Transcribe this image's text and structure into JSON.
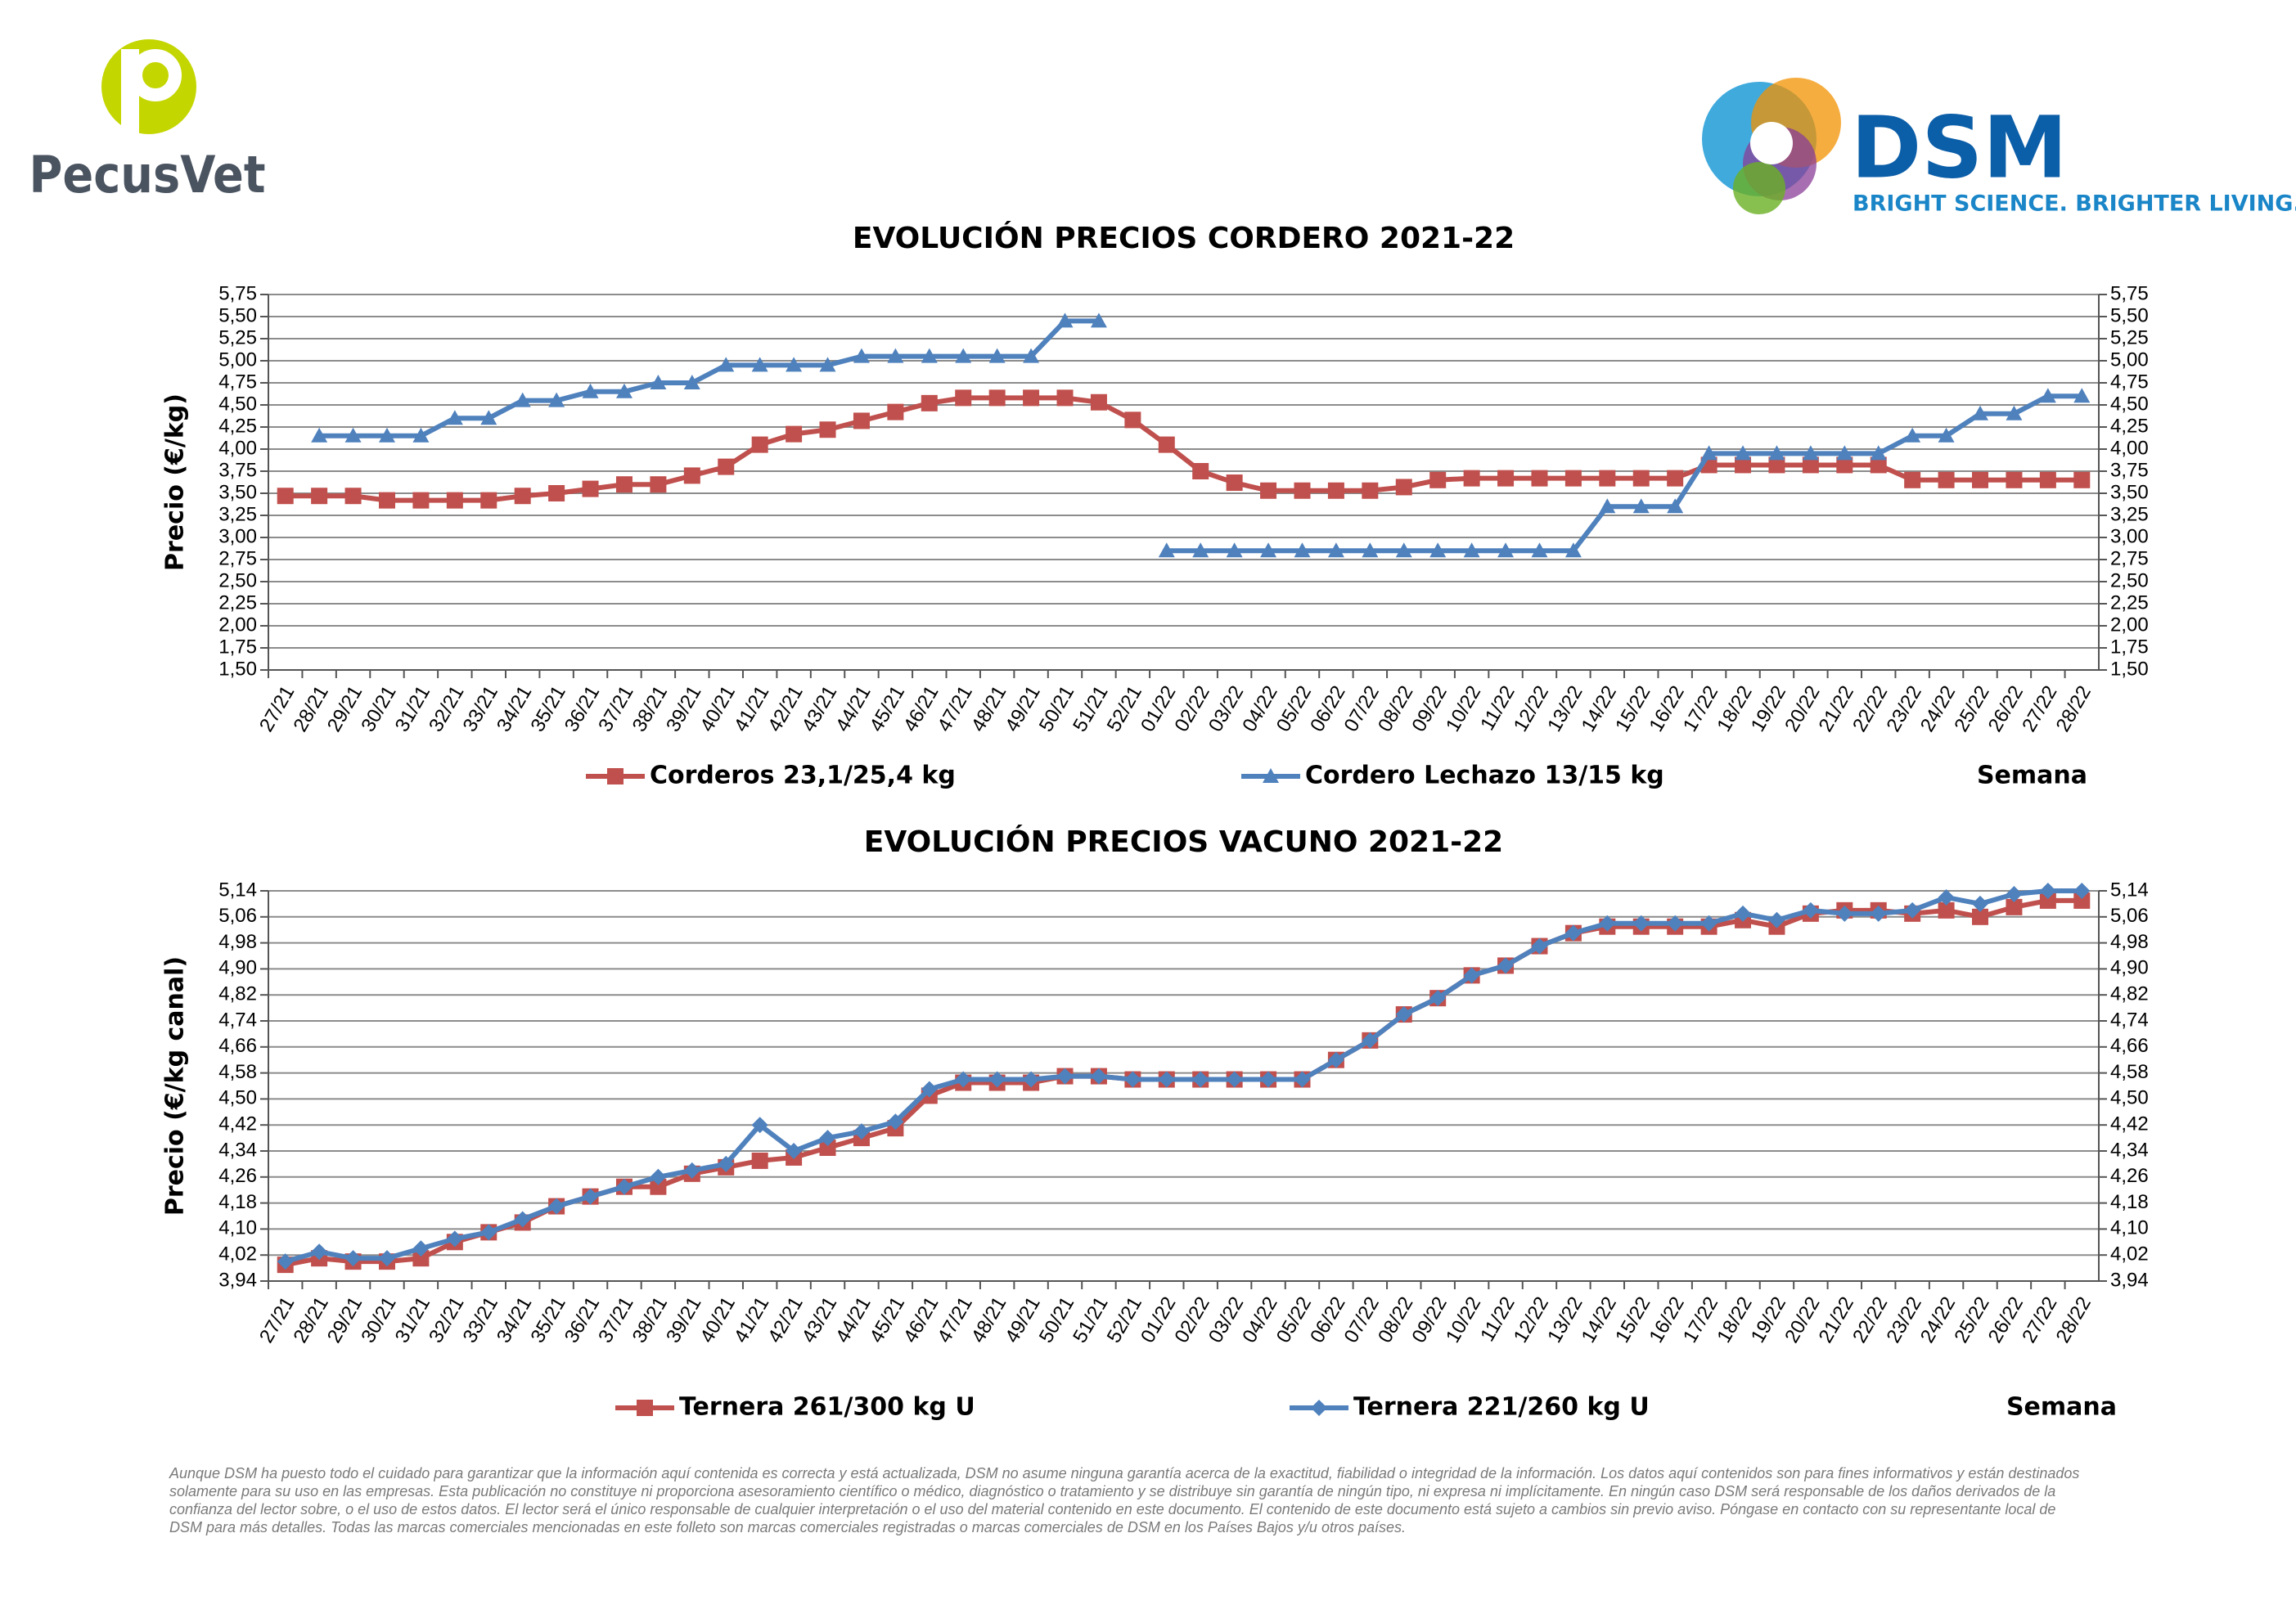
{
  "logos": {
    "left": "PecusVet",
    "right": "DSM",
    "tagline": "BRIGHT SCIENCE. BRIGHTER LIVING."
  },
  "chart_data": [
    {
      "type": "line",
      "title": "EVOLUCIÓN PRECIOS CORDERO 2021-22",
      "y_label": "Precio (€/kg)",
      "x_label": "Semana",
      "grid": true,
      "categories": [
        "27/21",
        "28/21",
        "29/21",
        "30/21",
        "31/21",
        "32/21",
        "33/21",
        "34/21",
        "35/21",
        "36/21",
        "37/21",
        "38/21",
        "39/21",
        "40/21",
        "41/21",
        "42/21",
        "43/21",
        "44/21",
        "45/21",
        "46/21",
        "47/21",
        "48/21",
        "49/21",
        "50/21",
        "51/21",
        "52/21",
        "01/22",
        "02/22",
        "03/22",
        "04/22",
        "05/22",
        "06/22",
        "07/22",
        "08/22",
        "09/22",
        "10/22",
        "11/22",
        "12/22",
        "13/22",
        "14/22",
        "15/22",
        "16/22",
        "17/22",
        "18/22",
        "19/22",
        "20/22",
        "21/22",
        "22/22",
        "23/22",
        "24/22",
        "25/22",
        "26/22",
        "27/22",
        "28/22"
      ],
      "ylim": [
        1.5,
        5.75
      ],
      "yticks": [
        {
          "value": 1.5,
          "label": "1,50"
        },
        {
          "value": 1.75,
          "label": "1,75"
        },
        {
          "value": 2,
          "label": "2,00"
        },
        {
          "value": 2.25,
          "label": "2,25"
        },
        {
          "value": 2.5,
          "label": "2,50"
        },
        {
          "value": 2.75,
          "label": "2,75"
        },
        {
          "value": 3,
          "label": "3,00"
        },
        {
          "value": 3.25,
          "label": "3,25"
        },
        {
          "value": 3.5,
          "label": "3,50"
        },
        {
          "value": 3.75,
          "label": "3,75"
        },
        {
          "value": 4,
          "label": "4,00"
        },
        {
          "value": 4.25,
          "label": "4,25"
        },
        {
          "value": 4.5,
          "label": "4,50"
        },
        {
          "value": 4.75,
          "label": "4,75"
        },
        {
          "value": 5,
          "label": "5,00"
        },
        {
          "value": 5.25,
          "label": "5,25"
        },
        {
          "value": 5.5,
          "label": "5,50"
        },
        {
          "value": 5.75,
          "label": "5,75"
        }
      ],
      "series": [
        {
          "name": "Corderos 23,1/25,4 kg",
          "color": "#c0504d",
          "marker": "square",
          "values": [
            3.47,
            3.47,
            3.47,
            3.42,
            3.42,
            3.42,
            3.42,
            3.47,
            3.5,
            3.55,
            3.6,
            3.6,
            3.7,
            3.8,
            4.05,
            4.17,
            4.22,
            4.32,
            4.42,
            4.52,
            4.58,
            4.58,
            4.58,
            4.58,
            4.53,
            4.33,
            4.05,
            3.75,
            3.62,
            3.53,
            3.53,
            3.53,
            3.53,
            3.57,
            3.65,
            3.67,
            3.67,
            3.67,
            3.67,
            3.67,
            3.67,
            3.67,
            3.82,
            3.82,
            3.82,
            3.82,
            3.82,
            3.82,
            3.65,
            3.65,
            3.65,
            3.65,
            3.65,
            3.65
          ]
        },
        {
          "name": "Cordero Lechazo 13/15 kg",
          "color": "#4f81bd",
          "marker": "triangle",
          "values": [
            null,
            4.15,
            4.15,
            4.15,
            4.15,
            4.35,
            4.35,
            4.55,
            4.55,
            4.65,
            4.65,
            4.75,
            4.75,
            4.95,
            4.95,
            4.95,
            4.95,
            5.05,
            5.05,
            5.05,
            5.05,
            5.05,
            5.05,
            5.45,
            5.45,
            null,
            2.85,
            2.85,
            2.85,
            2.85,
            2.85,
            2.85,
            2.85,
            2.85,
            2.85,
            2.85,
            2.85,
            2.85,
            2.85,
            3.35,
            3.35,
            3.35,
            3.95,
            3.95,
            3.95,
            3.95,
            3.95,
            3.95,
            4.15,
            4.15,
            4.4,
            4.4,
            4.6,
            4.6
          ]
        }
      ]
    },
    {
      "type": "line",
      "title": "EVOLUCIÓN PRECIOS VACUNO 2021-22",
      "y_label": "Precio (€/kg canal)",
      "x_label": "Semana",
      "grid": true,
      "categories": [
        "27/21",
        "28/21",
        "29/21",
        "30/21",
        "31/21",
        "32/21",
        "33/21",
        "34/21",
        "35/21",
        "36/21",
        "37/21",
        "38/21",
        "39/21",
        "40/21",
        "41/21",
        "42/21",
        "43/21",
        "44/21",
        "45/21",
        "46/21",
        "47/21",
        "48/21",
        "49/21",
        "50/21",
        "51/21",
        "52/21",
        "01/22",
        "02/22",
        "03/22",
        "04/22",
        "05/22",
        "06/22",
        "07/22",
        "08/22",
        "09/22",
        "10/22",
        "11/22",
        "12/22",
        "13/22",
        "14/22",
        "15/22",
        "16/22",
        "17/22",
        "18/22",
        "19/22",
        "20/22",
        "21/22",
        "22/22",
        "23/22",
        "24/22",
        "25/22",
        "26/22",
        "27/22",
        "28/22"
      ],
      "ylim": [
        3.94,
        5.14
      ],
      "yticks": [
        {
          "value": 3.94,
          "label": "3,94"
        },
        {
          "value": 4.02,
          "label": "4,02"
        },
        {
          "value": 4.1,
          "label": "4,10"
        },
        {
          "value": 4.18,
          "label": "4,18"
        },
        {
          "value": 4.26,
          "label": "4,26"
        },
        {
          "value": 4.34,
          "label": "4,34"
        },
        {
          "value": 4.42,
          "label": "4,42"
        },
        {
          "value": 4.5,
          "label": "4,50"
        },
        {
          "value": 4.58,
          "label": "4,58"
        },
        {
          "value": 4.66,
          "label": "4,66"
        },
        {
          "value": 4.74,
          "label": "4,74"
        },
        {
          "value": 4.82,
          "label": "4,82"
        },
        {
          "value": 4.9,
          "label": "4,90"
        },
        {
          "value": 4.98,
          "label": "4,98"
        },
        {
          "value": 5.06,
          "label": "5,06"
        },
        {
          "value": 5.14,
          "label": "5,14"
        }
      ],
      "series": [
        {
          "name": "Ternera 261/300 kg U",
          "color": "#c0504d",
          "marker": "square",
          "values": [
            3.99,
            4.01,
            4.0,
            4.0,
            4.01,
            4.06,
            4.09,
            4.12,
            4.17,
            4.2,
            4.23,
            4.23,
            4.27,
            4.29,
            4.31,
            4.32,
            4.35,
            4.38,
            4.41,
            4.51,
            4.55,
            4.55,
            4.55,
            4.57,
            4.57,
            4.56,
            4.56,
            4.56,
            4.56,
            4.56,
            4.56,
            4.62,
            4.68,
            4.76,
            4.81,
            4.88,
            4.91,
            4.97,
            5.01,
            5.03,
            5.03,
            5.03,
            5.03,
            5.05,
            5.03,
            5.07,
            5.08,
            5.08,
            5.07,
            5.08,
            5.06,
            5.09,
            5.11,
            5.11
          ]
        },
        {
          "name": "Ternera 221/260 kg U",
          "color": "#4f81bd",
          "marker": "diamond",
          "values": [
            4.0,
            4.03,
            4.01,
            4.01,
            4.04,
            4.07,
            4.09,
            4.13,
            4.17,
            4.2,
            4.23,
            4.26,
            4.28,
            4.3,
            4.42,
            4.34,
            4.38,
            4.4,
            4.43,
            4.53,
            4.56,
            4.56,
            4.56,
            4.57,
            4.57,
            4.56,
            4.56,
            4.56,
            4.56,
            4.56,
            4.56,
            4.62,
            4.68,
            4.76,
            4.81,
            4.88,
            4.91,
            4.97,
            5.01,
            5.04,
            5.04,
            5.04,
            5.04,
            5.07,
            5.05,
            5.08,
            5.07,
            5.07,
            5.08,
            5.12,
            5.1,
            5.13,
            5.14,
            5.14
          ]
        }
      ]
    }
  ],
  "disclaimer": "Aunque DSM ha puesto todo el cuidado para garantizar que la información aquí contenida es correcta y está actualizada, DSM no asume ninguna garantía acerca de la exactitud, fiabilidad o integridad de la información. Los datos aquí contenidos son para fines informativos y están destinados solamente para su uso en las empresas. Esta publicación no constituye ni proporciona asesoramiento científico o médico, diagnóstico o tratamiento y se distribuye sin garantía de ningún tipo, ni expresa ni implícitamente. En ningún caso DSM será responsable de los daños derivados de la confianza del lector sobre, o el uso de estos datos. El lector será el único responsable de cualquier interpretación o el uso del material contenido en este documento. El contenido de este documento está sujeto a cambios sin previo aviso. Póngase en contacto con su representante local de DSM para más detalles. Todas las marcas comerciales mencionadas en este folleto son marcas comerciales registradas o marcas comerciales de DSM en los Países Bajos y/u otros países."
}
